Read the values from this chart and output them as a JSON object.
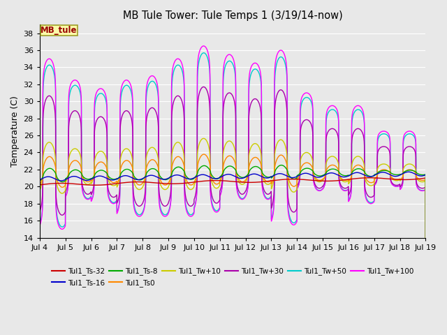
{
  "title": "MB Tule Tower: Tule Temps 1 (3/19/14-now)",
  "ylabel": "Temperature (C)",
  "ylim": [
    14,
    39
  ],
  "yticks": [
    14,
    16,
    18,
    20,
    22,
    24,
    26,
    28,
    30,
    32,
    34,
    36,
    38
  ],
  "xlabel_ticks": [
    "Jul 4",
    "Jul 5",
    "Jul 6",
    "Jul 7",
    "Jul 8",
    "Jul 9",
    "Jul 10",
    "Jul 11",
    "Jul 12",
    "Jul 13",
    "Jul 14",
    "Jul 15",
    "Jul 16",
    "Jul 17",
    "Jul 18",
    "Jul 19"
  ],
  "num_days": 15,
  "legend_box_label": "MB_tule",
  "series": [
    {
      "label": "Tul1_Ts-32",
      "color": "#cc0000",
      "linewidth": 1.0
    },
    {
      "label": "Tul1_Ts-16",
      "color": "#0000cc",
      "linewidth": 1.0
    },
    {
      "label": "Tul1_Ts-8",
      "color": "#00aa00",
      "linewidth": 1.0
    },
    {
      "label": "Tul1_Ts0",
      "color": "#ff8800",
      "linewidth": 1.0
    },
    {
      "label": "Tul1_Tw+10",
      "color": "#cccc00",
      "linewidth": 1.0
    },
    {
      "label": "Tul1_Tw+30",
      "color": "#aa00aa",
      "linewidth": 1.0
    },
    {
      "label": "Tul1_Tw+50",
      "color": "#00cccc",
      "linewidth": 1.0
    },
    {
      "label": "Tul1_Tw+100",
      "color": "#ff00ff",
      "linewidth": 1.0
    }
  ],
  "bg_color": "#e8e8e8",
  "plot_bg_color": "#e8e8e8",
  "peak_heights": [
    35.0,
    32.5,
    31.5,
    32.5,
    33.0,
    35.0,
    36.5,
    35.5,
    34.5,
    36.0,
    31.0,
    29.5,
    29.5,
    26.5,
    26.5
  ],
  "trough_depths": [
    15.0,
    18.5,
    18.0,
    16.5,
    16.5,
    16.5,
    17.0,
    18.5,
    18.5,
    15.5,
    19.5,
    19.5,
    18.0,
    20.0,
    19.5
  ]
}
